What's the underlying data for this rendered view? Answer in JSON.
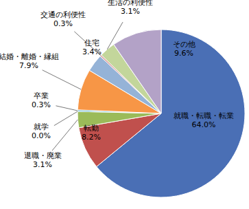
{
  "chart_data": {
    "type": "pie",
    "categories": [
      "就職・転職・転業",
      "転勤",
      "退職・廃業",
      "就学",
      "卒業",
      "結婚・離婚・縁組",
      "住宅",
      "交通の利便性",
      "生活の利便性",
      "その他"
    ],
    "values": [
      64.0,
      8.2,
      3.1,
      0.0,
      0.3,
      7.9,
      3.4,
      0.3,
      3.1,
      9.6
    ],
    "value_labels": [
      "64.0%",
      "8.2%",
      "3.1%",
      "0.0%",
      "0.3%",
      "7.9%",
      "3.4%",
      "0.3%",
      "3.1%",
      "9.6%"
    ],
    "colors": [
      "#4a6fb5",
      "#c0504d",
      "#9bbb59",
      "#8064a2",
      "#4bacc6",
      "#f79646",
      "#95b3d7",
      "#d99694",
      "#c3d69b",
      "#b3a2c7"
    ],
    "data_labels": true
  }
}
